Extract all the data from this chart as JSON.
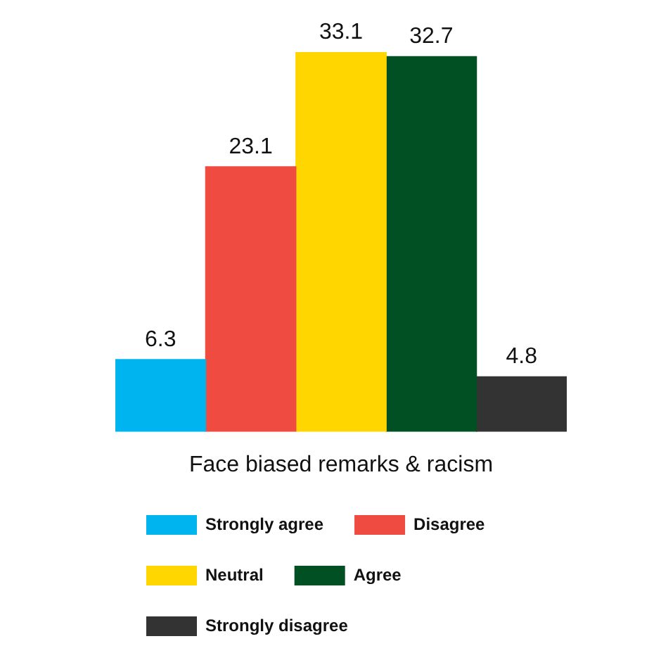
{
  "chart_data": {
    "type": "bar",
    "xlabel": "Face biased remarks & racism",
    "categories": [
      null,
      null,
      null,
      null,
      null
    ],
    "series": [
      {
        "name": "Strongly agree",
        "color": "#00b4ef",
        "values": [
          6.3,
          null,
          null,
          null,
          null
        ]
      },
      {
        "name": "Disagree",
        "color": "#ef4b41",
        "values": [
          null,
          23.1,
          null,
          null,
          null
        ]
      },
      {
        "name": "Neutral",
        "color": "#ffd600",
        "values": [
          null,
          null,
          33.1,
          null,
          null
        ]
      },
      {
        "name": "Agree",
        "color": "#005024",
        "values": [
          null,
          null,
          null,
          32.7,
          null
        ]
      },
      {
        "name": "Strongly disagree",
        "color": "#333333",
        "values": [
          null,
          null,
          null,
          null,
          4.8
        ]
      }
    ],
    "stacked": true,
    "data_labels": true,
    "legend": "bottom",
    "grid": false
  }
}
